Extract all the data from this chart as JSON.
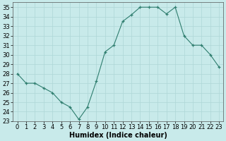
{
  "x": [
    0,
    1,
    2,
    3,
    4,
    5,
    6,
    7,
    8,
    9,
    10,
    11,
    12,
    13,
    14,
    15,
    16,
    17,
    18,
    19,
    20,
    21,
    22,
    23
  ],
  "y": [
    28,
    27,
    27,
    26.5,
    26,
    25,
    24.5,
    23.2,
    24.5,
    27.2,
    30.3,
    31,
    33.5,
    34.2,
    35,
    35,
    35,
    34.3,
    35,
    32,
    31,
    31,
    30,
    28.7
  ],
  "line_color": "#2e7d6e",
  "marker": "+",
  "background_color": "#c8eaea",
  "grid_color": "#aed6d6",
  "xlabel": "Humidex (Indice chaleur)",
  "ylim": [
    23,
    35.5
  ],
  "xlim": [
    -0.5,
    23.5
  ],
  "yticks": [
    23,
    24,
    25,
    26,
    27,
    28,
    29,
    30,
    31,
    32,
    33,
    34,
    35
  ],
  "xtick_labels": [
    "0",
    "1",
    "2",
    "3",
    "4",
    "5",
    "6",
    "7",
    "8",
    "9",
    "10",
    "11",
    "12",
    "13",
    "14",
    "15",
    "16",
    "17",
    "18",
    "19",
    "20",
    "21",
    "22",
    "23"
  ],
  "axis_fontsize": 6.5,
  "tick_fontsize": 6.0,
  "xlabel_fontsize": 7.0
}
